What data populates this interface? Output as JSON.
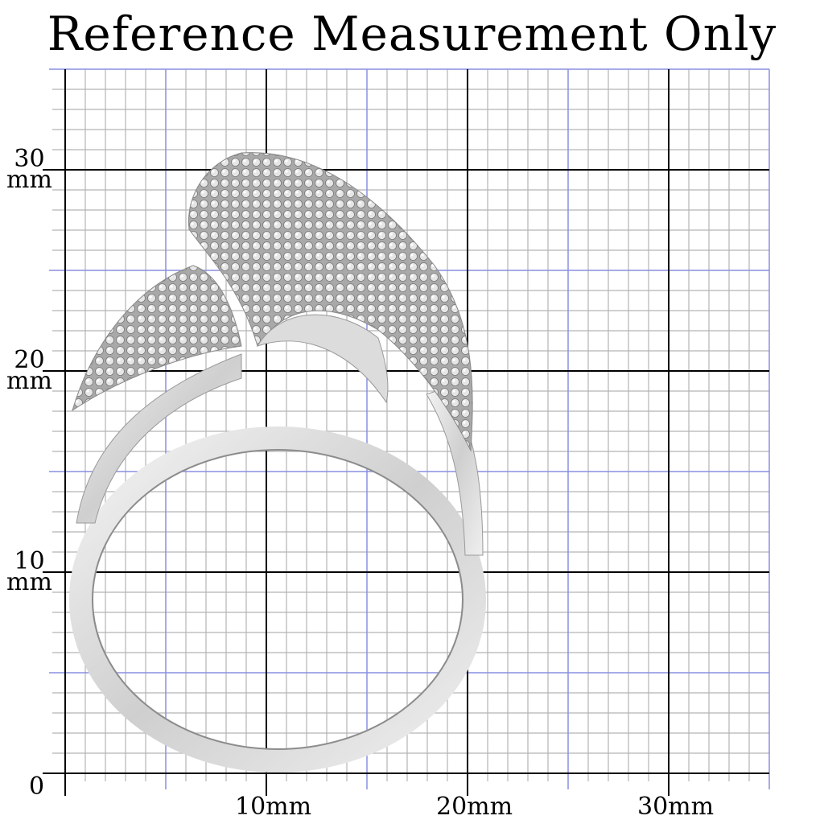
{
  "title": "Reference Measurement Only",
  "y_labels": [
    {
      "value": "30",
      "unit": "mm"
    },
    {
      "value": "20",
      "unit": "mm"
    },
    {
      "value": "10",
      "unit": "mm"
    }
  ],
  "origin_label": "0",
  "x_labels": [
    "10mm",
    "20mm",
    "30mm"
  ],
  "grid": {
    "max_mm": 35,
    "minor_color": "#b4b4b4",
    "five_mm_color": "#8a8fe0",
    "ten_mm_color": "#000000"
  },
  "product": "silver ring with pave-set stones"
}
